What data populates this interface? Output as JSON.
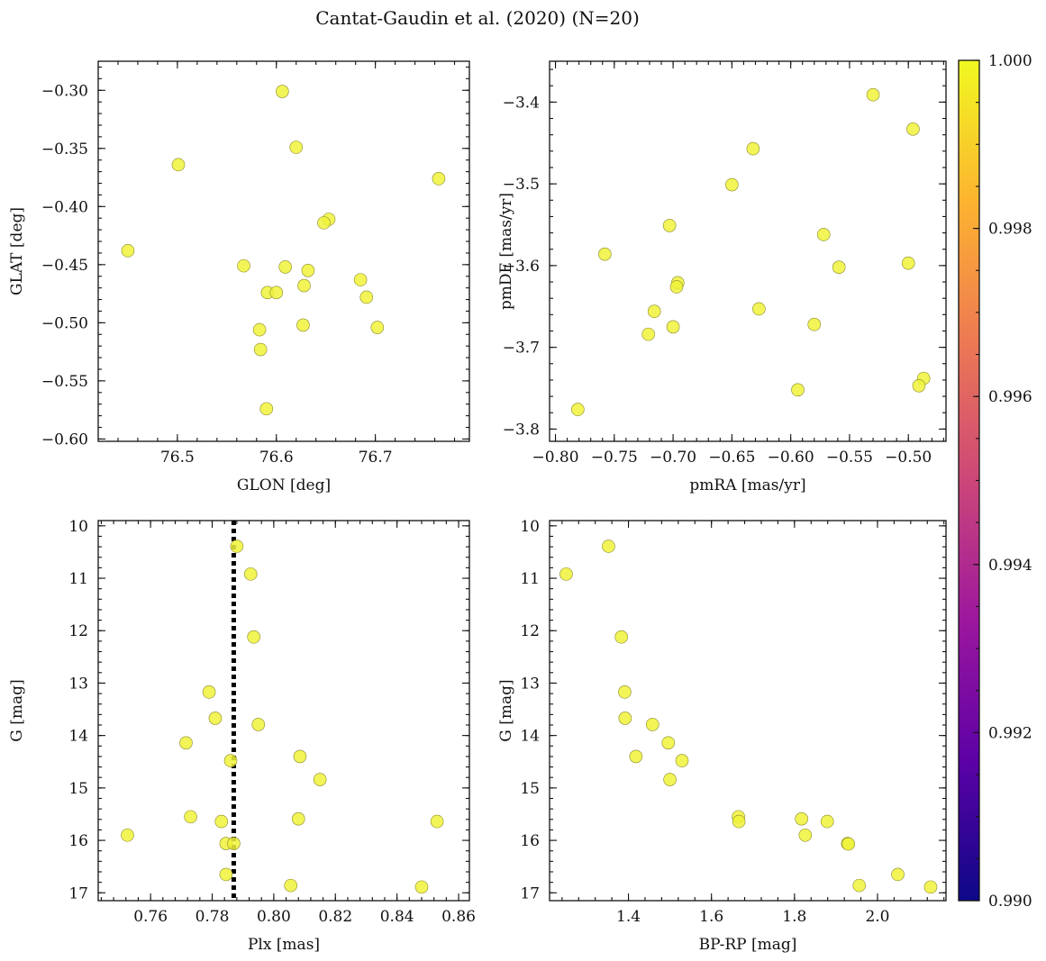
{
  "figure": {
    "title": "Cantat-Gaudin et al. (2020) (N=20)"
  },
  "chart_data": [
    {
      "type": "scatter",
      "id": "pos",
      "xlabel": "GLON [deg]",
      "ylabel": "GLAT [deg]",
      "xlim": [
        76.42,
        76.795
      ],
      "ylim": [
        -0.602,
        -0.275
      ],
      "yinvert": false,
      "xticks": [
        76.5,
        76.6,
        76.7
      ],
      "xticklabels": [
        "76.5",
        "76.6",
        "76.7"
      ],
      "yticks": [
        -0.6,
        -0.55,
        -0.5,
        -0.45,
        -0.4,
        -0.35,
        -0.3
      ],
      "yticklabels": [
        "−0.60",
        "−0.55",
        "−0.50",
        "−0.45",
        "−0.40",
        "−0.35",
        "−0.30"
      ],
      "points": [
        {
          "x": 76.606,
          "y": -0.301
        },
        {
          "x": 76.62,
          "y": -0.349
        },
        {
          "x": 76.501,
          "y": -0.364
        },
        {
          "x": 76.764,
          "y": -0.376
        },
        {
          "x": 76.653,
          "y": -0.411
        },
        {
          "x": 76.648,
          "y": -0.414
        },
        {
          "x": 76.45,
          "y": -0.438
        },
        {
          "x": 76.567,
          "y": -0.451
        },
        {
          "x": 76.609,
          "y": -0.452
        },
        {
          "x": 76.632,
          "y": -0.455
        },
        {
          "x": 76.685,
          "y": -0.463
        },
        {
          "x": 76.628,
          "y": -0.468
        },
        {
          "x": 76.591,
          "y": -0.474
        },
        {
          "x": 76.6,
          "y": -0.474
        },
        {
          "x": 76.691,
          "y": -0.478
        },
        {
          "x": 76.627,
          "y": -0.502
        },
        {
          "x": 76.702,
          "y": -0.504
        },
        {
          "x": 76.583,
          "y": -0.506
        },
        {
          "x": 76.584,
          "y": -0.523
        },
        {
          "x": 76.59,
          "y": -0.574
        }
      ]
    },
    {
      "type": "scatter",
      "id": "pm",
      "xlabel": "pmRA [mas/yr]",
      "ylabel": "pmDE [mas/yr]",
      "xlim": [
        -0.805,
        -0.468
      ],
      "ylim": [
        -3.815,
        -3.35
      ],
      "yinvert": false,
      "xticks": [
        -0.8,
        -0.75,
        -0.7,
        -0.65,
        -0.6,
        -0.55,
        -0.5
      ],
      "xticklabels": [
        "−0.80",
        "−0.75",
        "−0.70",
        "−0.65",
        "−0.60",
        "−0.55",
        "−0.50"
      ],
      "yticks": [
        -3.8,
        -3.7,
        -3.6,
        -3.5,
        -3.4
      ],
      "yticklabels": [
        "−3.8",
        "−3.7",
        "−3.6",
        "−3.5",
        "−3.4"
      ],
      "points": [
        {
          "x": -0.53,
          "y": -3.391
        },
        {
          "x": -0.496,
          "y": -3.433
        },
        {
          "x": -0.632,
          "y": -3.457
        },
        {
          "x": -0.65,
          "y": -3.501
        },
        {
          "x": -0.703,
          "y": -3.551
        },
        {
          "x": -0.758,
          "y": -3.586
        },
        {
          "x": -0.572,
          "y": -3.562
        },
        {
          "x": -0.5,
          "y": -3.597
        },
        {
          "x": -0.559,
          "y": -3.602
        },
        {
          "x": -0.696,
          "y": -3.621
        },
        {
          "x": -0.697,
          "y": -3.626
        },
        {
          "x": -0.627,
          "y": -3.653
        },
        {
          "x": -0.716,
          "y": -3.656
        },
        {
          "x": -0.58,
          "y": -3.672
        },
        {
          "x": -0.7,
          "y": -3.675
        },
        {
          "x": -0.721,
          "y": -3.684
        },
        {
          "x": -0.487,
          "y": -3.738
        },
        {
          "x": -0.491,
          "y": -3.747
        },
        {
          "x": -0.594,
          "y": -3.752
        },
        {
          "x": -0.781,
          "y": -3.776
        }
      ]
    },
    {
      "type": "scatter",
      "id": "plx",
      "xlabel": "Plx [mas]",
      "ylabel": "G [mag]",
      "xlim": [
        0.743,
        0.8635
      ],
      "ylim": [
        9.9,
        17.15
      ],
      "yinvert": true,
      "vline": {
        "x": 0.787,
        "style": "dotted",
        "color": "#000000"
      },
      "xticks": [
        0.76,
        0.78,
        0.8,
        0.82,
        0.84,
        0.86
      ],
      "xticklabels": [
        "0.76",
        "0.78",
        "0.80",
        "0.82",
        "0.84",
        "0.86"
      ],
      "yticks": [
        10,
        11,
        12,
        13,
        14,
        15,
        16,
        17
      ],
      "yticklabels": [
        "10",
        "11",
        "12",
        "13",
        "14",
        "15",
        "16",
        "17"
      ],
      "points": [
        {
          "x": 0.788,
          "y": 10.39
        },
        {
          "x": 0.7925,
          "y": 10.92
        },
        {
          "x": 0.7935,
          "y": 12.12
        },
        {
          "x": 0.779,
          "y": 13.17
        },
        {
          "x": 0.781,
          "y": 13.67
        },
        {
          "x": 0.795,
          "y": 13.79
        },
        {
          "x": 0.7715,
          "y": 14.14
        },
        {
          "x": 0.8085,
          "y": 14.4
        },
        {
          "x": 0.786,
          "y": 14.48
        },
        {
          "x": 0.815,
          "y": 14.84
        },
        {
          "x": 0.773,
          "y": 15.55
        },
        {
          "x": 0.808,
          "y": 15.59
        },
        {
          "x": 0.783,
          "y": 15.64
        },
        {
          "x": 0.853,
          "y": 15.64
        },
        {
          "x": 0.7525,
          "y": 15.9
        },
        {
          "x": 0.7845,
          "y": 16.06
        },
        {
          "x": 0.787,
          "y": 16.06
        },
        {
          "x": 0.7845,
          "y": 16.65
        },
        {
          "x": 0.8055,
          "y": 16.86
        },
        {
          "x": 0.848,
          "y": 16.89
        }
      ]
    },
    {
      "type": "scatter",
      "id": "cmd",
      "xlabel": "BP-RP [mag]",
      "ylabel": "G [mag]",
      "xlim": [
        1.21,
        2.165
      ],
      "ylim": [
        9.9,
        17.15
      ],
      "yinvert": true,
      "xticks": [
        1.4,
        1.6,
        1.8,
        2.0
      ],
      "xticklabels": [
        "1.4",
        "1.6",
        "1.8",
        "2.0"
      ],
      "yticks": [
        10,
        11,
        12,
        13,
        14,
        15,
        16,
        17
      ],
      "yticklabels": [
        "10",
        "11",
        "12",
        "13",
        "14",
        "15",
        "16",
        "17"
      ],
      "points": [
        {
          "x": 1.352,
          "y": 10.39
        },
        {
          "x": 1.25,
          "y": 10.92
        },
        {
          "x": 1.383,
          "y": 12.12
        },
        {
          "x": 1.391,
          "y": 13.17
        },
        {
          "x": 1.392,
          "y": 13.67
        },
        {
          "x": 1.458,
          "y": 13.79
        },
        {
          "x": 1.496,
          "y": 14.14
        },
        {
          "x": 1.418,
          "y": 14.4
        },
        {
          "x": 1.529,
          "y": 14.48
        },
        {
          "x": 1.5,
          "y": 14.84
        },
        {
          "x": 1.665,
          "y": 15.55
        },
        {
          "x": 1.817,
          "y": 15.59
        },
        {
          "x": 1.666,
          "y": 15.64
        },
        {
          "x": 1.879,
          "y": 15.64
        },
        {
          "x": 1.826,
          "y": 15.9
        },
        {
          "x": 1.928,
          "y": 16.06
        },
        {
          "x": 1.93,
          "y": 16.07
        },
        {
          "x": 2.049,
          "y": 16.65
        },
        {
          "x": 1.956,
          "y": 16.86
        },
        {
          "x": 2.128,
          "y": 16.89
        }
      ]
    }
  ],
  "colorbar": {
    "vmin": 0.99,
    "vmax": 1.0,
    "colormap": "plasma",
    "stops": [
      "#0d0887",
      "#5c01a6",
      "#9c179e",
      "#cc4778",
      "#ed7953",
      "#fdb42f",
      "#f0f921"
    ],
    "ticks": [
      0.99,
      0.992,
      0.994,
      0.996,
      0.998,
      1.0
    ],
    "ticklabels": [
      "0.990",
      "0.992",
      "0.994",
      "0.996",
      "0.998",
      "1.000"
    ]
  }
}
